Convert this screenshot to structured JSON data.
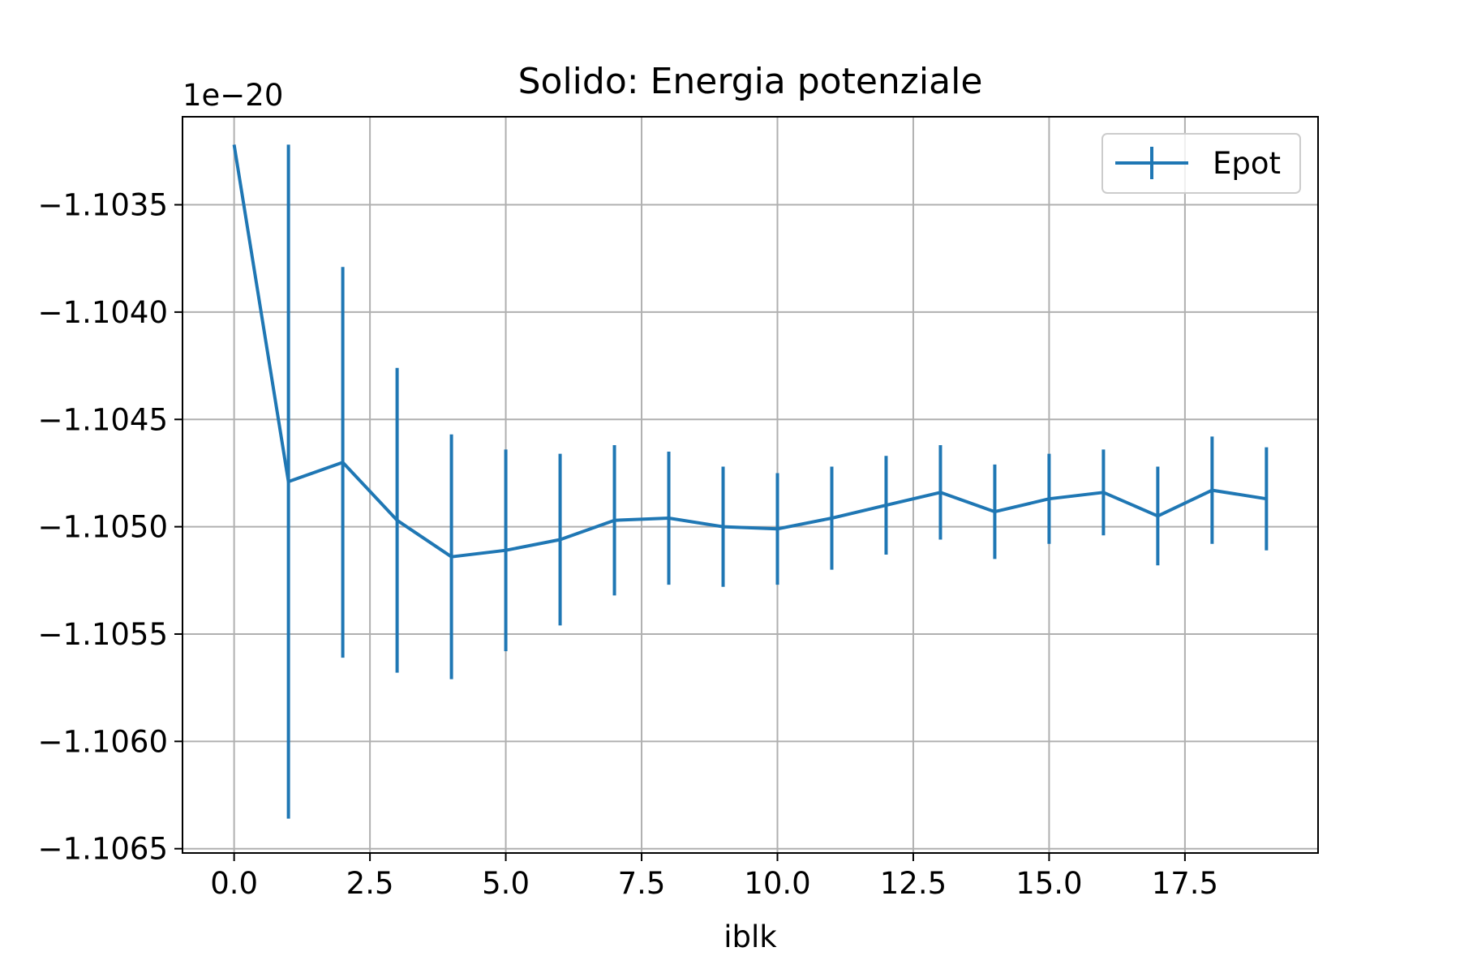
{
  "chart_data": {
    "type": "line",
    "title": "Solido: Energia potenziale",
    "xlabel": "iblk",
    "ylabel": "",
    "offset_text": "1e−20",
    "xlim": [
      -0.95,
      19.95
    ],
    "ylim": [
      -1.10652,
      -1.10309
    ],
    "x_ticks": [
      0.0,
      2.5,
      5.0,
      7.5,
      10.0,
      12.5,
      15.0,
      17.5
    ],
    "x_tick_labels": [
      "0.0",
      "2.5",
      "5.0",
      "7.5",
      "10.0",
      "12.5",
      "15.0",
      "17.5"
    ],
    "y_ticks": [
      -1.1035,
      -1.104,
      -1.1045,
      -1.105,
      -1.1055,
      -1.106,
      -1.1065
    ],
    "y_tick_labels": [
      "−1.1035",
      "−1.1040",
      "−1.1045",
      "−1.1050",
      "−1.1055",
      "−1.1060",
      "−1.1065"
    ],
    "grid": true,
    "legend_position": "upper right",
    "series": [
      {
        "name": "Epot",
        "color": "#1f77b4",
        "x": [
          0,
          1,
          2,
          3,
          4,
          5,
          6,
          7,
          8,
          9,
          10,
          11,
          12,
          13,
          14,
          15,
          16,
          17,
          18,
          19
        ],
        "y": [
          -1.10322,
          -1.10479,
          -1.1047,
          -1.10497,
          -1.10514,
          -1.10511,
          -1.10506,
          -1.10497,
          -1.10496,
          -1.105,
          -1.10501,
          -1.10496,
          -1.1049,
          -1.10484,
          -1.10493,
          -1.10487,
          -1.10484,
          -1.10495,
          -1.10483,
          -1.10487
        ],
        "yerr": [
          0,
          0.00157,
          0.00091,
          0.00071,
          0.00057,
          0.00047,
          0.0004,
          0.00035,
          0.00031,
          0.00028,
          0.00026,
          0.00024,
          0.00023,
          0.00022,
          0.00022,
          0.00021,
          0.0002,
          0.00023,
          0.00025,
          0.00024
        ]
      }
    ]
  }
}
